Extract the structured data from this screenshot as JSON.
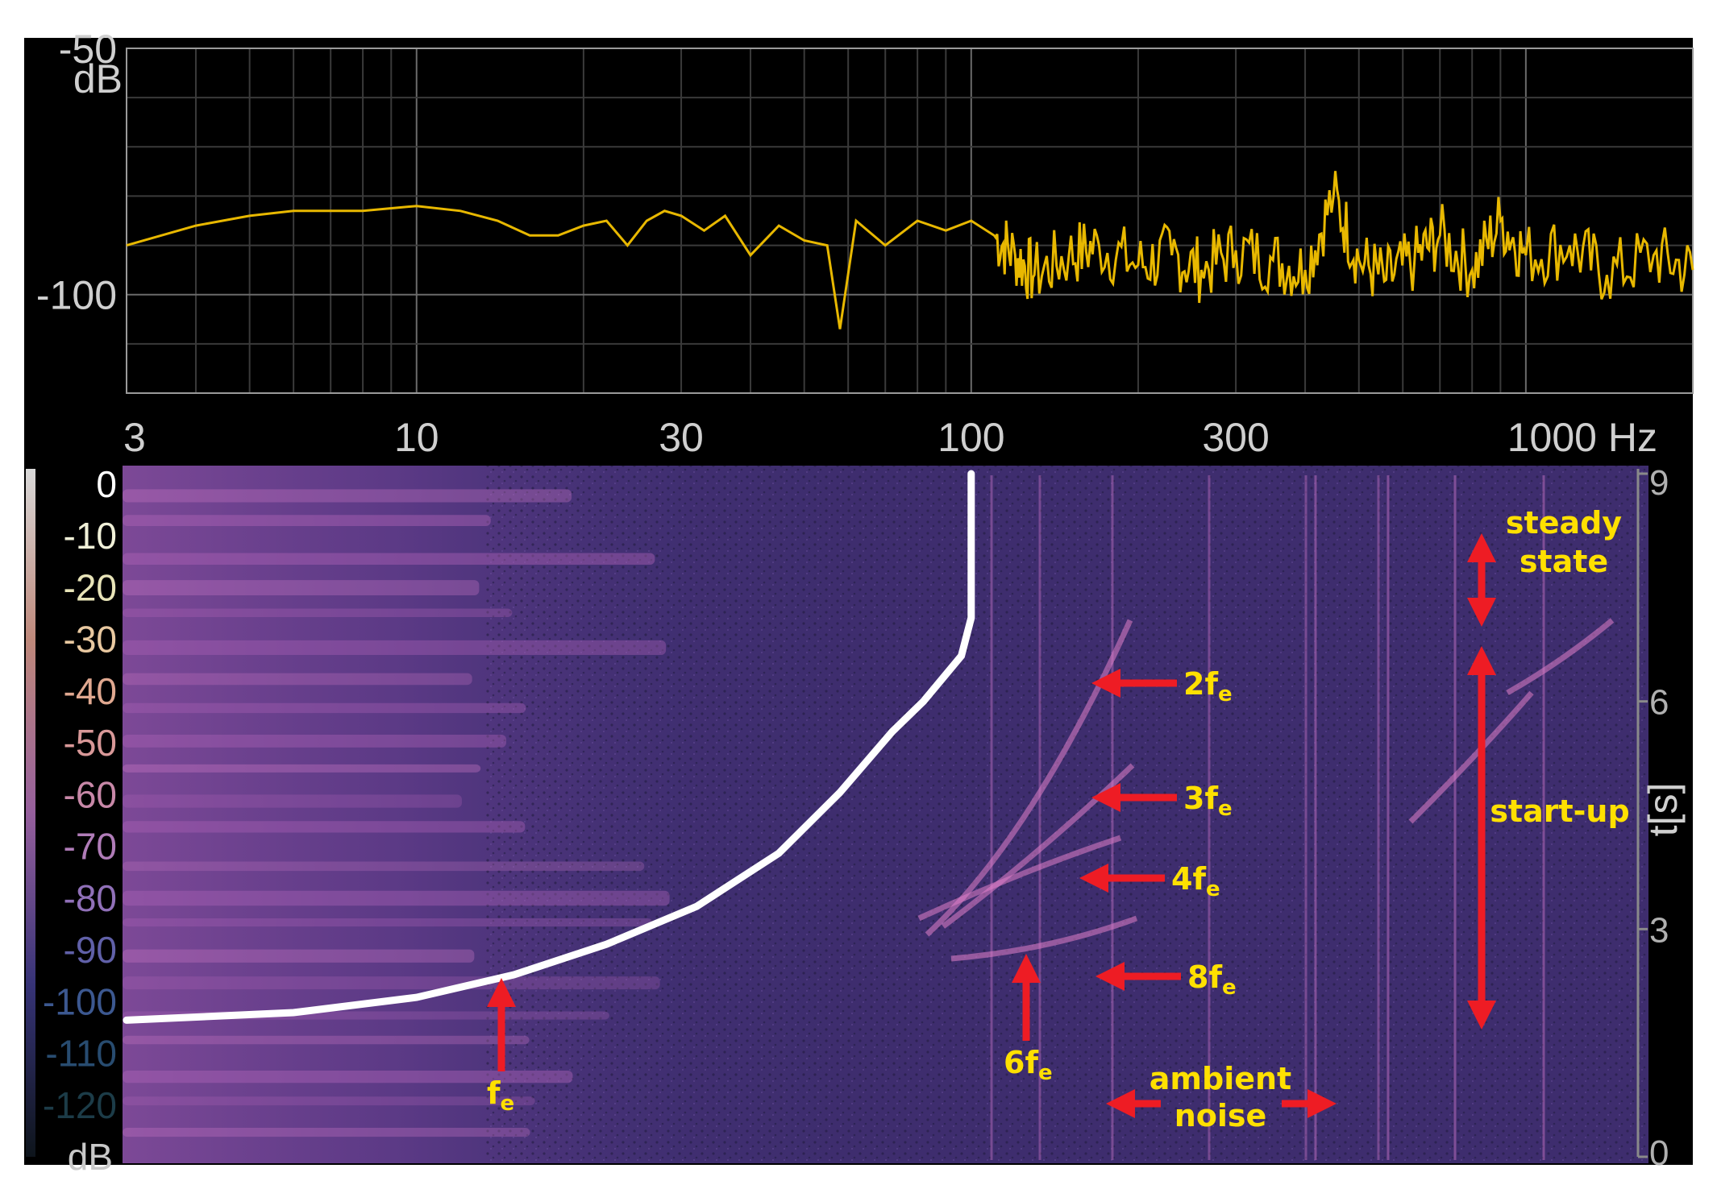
{
  "chart_data": [
    {
      "type": "line",
      "panel": "spectrum",
      "title": "",
      "xlabel": "",
      "ylabel": "dB",
      "x_scale": "log",
      "xlim": [
        3,
        2000
      ],
      "ylim": [
        -120,
        -50
      ],
      "y_ticks": [
        "-50",
        "-100"
      ],
      "x_ticks": [
        "3",
        "10",
        "30",
        "100",
        "300",
        "1000 Hz"
      ],
      "x_tick_values": [
        3,
        10,
        30,
        100,
        300,
        1000
      ],
      "grid": true,
      "colors": {
        "background": "#000000",
        "grid": "#3c3c3c",
        "line": "#e8b800"
      },
      "series": [
        {
          "x": [
            3,
            4,
            5,
            6,
            7,
            8,
            10,
            12,
            14,
            16,
            18,
            20,
            22,
            24,
            26,
            28,
            30,
            33,
            36,
            40,
            45,
            50,
            55,
            58,
            62,
            70,
            80,
            90,
            100,
            110,
            120,
            130,
            150,
            170,
            200,
            230,
            260,
            300,
            350,
            400,
            450,
            500,
            560,
            630,
            700,
            800,
            900,
            1000,
            1200,
            1400,
            1700,
            2000
          ],
          "y": [
            -90,
            -86,
            -84,
            -83,
            -83,
            -83,
            -82,
            -83,
            -85,
            -88,
            -88,
            -86,
            -85,
            -90,
            -85,
            -83,
            -84,
            -87,
            -84,
            -92,
            -86,
            -89,
            -90,
            -107,
            -85,
            -90,
            -85,
            -87,
            -85,
            -88,
            -92,
            -96,
            -92,
            -90,
            -94,
            -92,
            -95,
            -91,
            -93,
            -95,
            -80,
            -93,
            -97,
            -93,
            -88,
            -95,
            -85,
            -92,
            -90,
            -96,
            -92,
            -95
          ]
        }
      ]
    },
    {
      "type": "heatmap",
      "panel": "spectrogram",
      "xlabel": "",
      "ylabel": "t[s]",
      "x_scale": "log",
      "xlim": [
        3,
        2000
      ],
      "ylim": [
        0,
        9
      ],
      "y_ticks": [
        "9",
        "6",
        "3",
        "0"
      ],
      "y_tick_values": [
        9,
        6,
        3,
        0
      ],
      "colorbar": {
        "ticks": [
          "0",
          "-10",
          "-20",
          "-30",
          "-40",
          "-50",
          "-60",
          "-70",
          "-80",
          "-90",
          "-100",
          "-110",
          "-120",
          "dB"
        ],
        "tick_colors": [
          "#ffffff",
          "#f0f0d8",
          "#e8e4b8",
          "#e8c8a0",
          "#e0a890",
          "#d89898",
          "#c888a8",
          "#b07cb8",
          "#9070b8",
          "#6060a8",
          "#3c5890",
          "#284c70",
          "#1c3c48",
          "#c8c8c8"
        ]
      },
      "colors": {
        "plot_bg": "#3e2d6e",
        "ridge": "#c070c0",
        "overlay_curve": "#ffffff",
        "arrow": "#ee1c24",
        "annotation_text": "#ffe000"
      },
      "curve_fe": {
        "t": [
          1.8,
          1.9,
          2.1,
          2.4,
          2.8,
          3.3,
          4.0,
          4.8,
          5.6,
          6.0,
          6.6,
          7.1,
          9.0
        ],
        "f": [
          3.0,
          6.0,
          10.0,
          15.0,
          22.0,
          32.0,
          45.0,
          58.0,
          72.0,
          82.0,
          96.0,
          100.0,
          100.0
        ]
      },
      "annotations": [
        {
          "text": "f",
          "sub": "e"
        },
        {
          "text": "6f",
          "sub": "e"
        },
        {
          "text": "2f",
          "sub": "e"
        },
        {
          "text": "3f",
          "sub": "e"
        },
        {
          "text": "4f",
          "sub": "e"
        },
        {
          "text": "8f",
          "sub": "e"
        },
        {
          "text": "ambient",
          "text2": "noise"
        },
        {
          "text": "steady",
          "text2": "state"
        },
        {
          "text": "start-up"
        }
      ]
    }
  ]
}
